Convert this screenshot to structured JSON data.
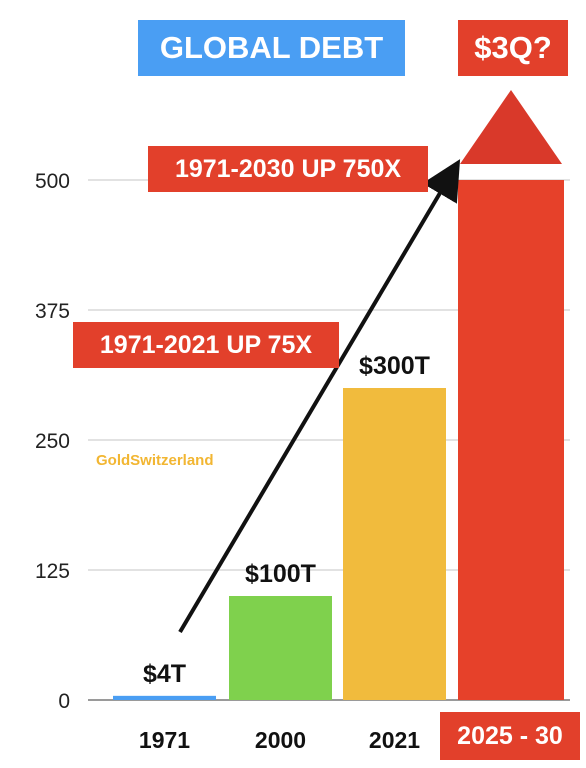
{
  "header": {
    "title": "GLOBAL DEBT",
    "title_color": "#4a9ef3",
    "projection": "$3Q?",
    "projection_color": "#e2402b"
  },
  "watermark": "GoldSwitzerland",
  "annotations": {
    "up_2030": "1971-2030 UP 750X",
    "up_2021": "1971-2021 UP 75X"
  },
  "chart_data": {
    "type": "bar",
    "title": "GLOBAL DEBT",
    "xlabel": "",
    "ylabel": "",
    "ylim": [
      0,
      500
    ],
    "yticks": [
      "500",
      "375",
      "250",
      "125",
      "0"
    ],
    "grid": true,
    "categories": [
      "1971",
      "2000",
      "2021",
      "2025 - 30"
    ],
    "values": [
      4,
      100,
      300,
      500
    ],
    "value_labels": [
      "$4T",
      "$100T",
      "$300T",
      ""
    ],
    "colors": [
      "#4a9ef3",
      "#7fd14d",
      "#f1bb3d",
      "#e6412a"
    ],
    "last_bar_arrow": true
  }
}
